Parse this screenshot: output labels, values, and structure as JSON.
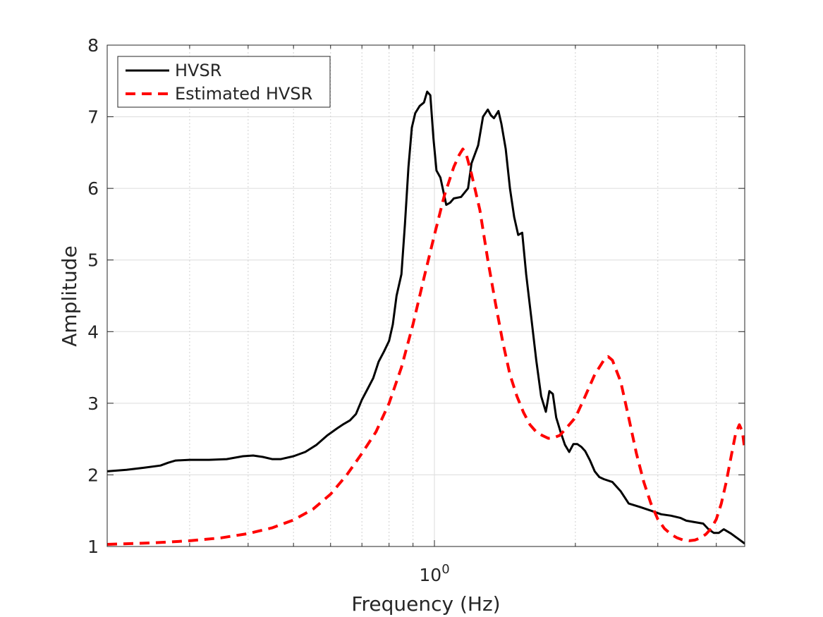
{
  "chart_data": {
    "type": "line",
    "title": "",
    "xlabel": "Frequency (Hz)",
    "ylabel": "Amplitude",
    "xscale": "log",
    "xlim": [
      0.2,
      4.6
    ],
    "ylim": [
      1,
      8
    ],
    "yticks": [
      1,
      2,
      3,
      4,
      5,
      6,
      7,
      8
    ],
    "xticks": [
      {
        "value": 1,
        "base": "10",
        "exponent": "0"
      }
    ],
    "grid": true,
    "legend_position": "top-left",
    "series": [
      {
        "name": "HVSR",
        "color": "#000000",
        "style": "solid",
        "points": [
          [
            0.2,
            2.05
          ],
          [
            0.22,
            2.07
          ],
          [
            0.24,
            2.1
          ],
          [
            0.26,
            2.13
          ],
          [
            0.27,
            2.17
          ],
          [
            0.28,
            2.2
          ],
          [
            0.3,
            2.21
          ],
          [
            0.33,
            2.21
          ],
          [
            0.36,
            2.22
          ],
          [
            0.39,
            2.26
          ],
          [
            0.41,
            2.27
          ],
          [
            0.43,
            2.25
          ],
          [
            0.45,
            2.22
          ],
          [
            0.47,
            2.22
          ],
          [
            0.5,
            2.26
          ],
          [
            0.53,
            2.32
          ],
          [
            0.56,
            2.42
          ],
          [
            0.59,
            2.55
          ],
          [
            0.62,
            2.65
          ],
          [
            0.64,
            2.71
          ],
          [
            0.66,
            2.76
          ],
          [
            0.68,
            2.85
          ],
          [
            0.7,
            3.05
          ],
          [
            0.72,
            3.2
          ],
          [
            0.74,
            3.35
          ],
          [
            0.76,
            3.58
          ],
          [
            0.78,
            3.72
          ],
          [
            0.8,
            3.87
          ],
          [
            0.815,
            4.1
          ],
          [
            0.83,
            4.5
          ],
          [
            0.85,
            4.8
          ],
          [
            0.865,
            5.5
          ],
          [
            0.88,
            6.3
          ],
          [
            0.895,
            6.85
          ],
          [
            0.91,
            7.05
          ],
          [
            0.93,
            7.15
          ],
          [
            0.95,
            7.2
          ],
          [
            0.965,
            7.35
          ],
          [
            0.98,
            7.3
          ],
          [
            0.995,
            6.7
          ],
          [
            1.01,
            6.25
          ],
          [
            1.03,
            6.15
          ],
          [
            1.06,
            5.77
          ],
          [
            1.08,
            5.8
          ],
          [
            1.1,
            5.86
          ],
          [
            1.14,
            5.88
          ],
          [
            1.18,
            6.0
          ],
          [
            1.2,
            6.35
          ],
          [
            1.24,
            6.6
          ],
          [
            1.27,
            7.0
          ],
          [
            1.3,
            7.1
          ],
          [
            1.32,
            7.02
          ],
          [
            1.34,
            6.98
          ],
          [
            1.37,
            7.08
          ],
          [
            1.39,
            6.9
          ],
          [
            1.42,
            6.55
          ],
          [
            1.45,
            6.0
          ],
          [
            1.48,
            5.6
          ],
          [
            1.51,
            5.35
          ],
          [
            1.54,
            5.38
          ],
          [
            1.57,
            4.8
          ],
          [
            1.61,
            4.2
          ],
          [
            1.65,
            3.6
          ],
          [
            1.69,
            3.1
          ],
          [
            1.73,
            2.88
          ],
          [
            1.76,
            3.17
          ],
          [
            1.79,
            3.13
          ],
          [
            1.82,
            2.8
          ],
          [
            1.86,
            2.6
          ],
          [
            1.9,
            2.42
          ],
          [
            1.94,
            2.32
          ],
          [
            1.98,
            2.43
          ],
          [
            2.02,
            2.43
          ],
          [
            2.06,
            2.39
          ],
          [
            2.1,
            2.33
          ],
          [
            2.15,
            2.2
          ],
          [
            2.2,
            2.05
          ],
          [
            2.25,
            1.97
          ],
          [
            2.3,
            1.94
          ],
          [
            2.4,
            1.9
          ],
          [
            2.5,
            1.77
          ],
          [
            2.6,
            1.6
          ],
          [
            2.75,
            1.55
          ],
          [
            2.9,
            1.5
          ],
          [
            3.05,
            1.45
          ],
          [
            3.2,
            1.43
          ],
          [
            3.35,
            1.4
          ],
          [
            3.45,
            1.36
          ],
          [
            3.6,
            1.34
          ],
          [
            3.75,
            1.32
          ],
          [
            3.85,
            1.24
          ],
          [
            3.95,
            1.19
          ],
          [
            4.05,
            1.19
          ],
          [
            4.15,
            1.24
          ],
          [
            4.3,
            1.18
          ],
          [
            4.45,
            1.11
          ],
          [
            4.6,
            1.04
          ]
        ]
      },
      {
        "name": "Estimated HVSR",
        "color": "#ff0000",
        "style": "dashed",
        "points": [
          [
            0.2,
            1.03
          ],
          [
            0.25,
            1.05
          ],
          [
            0.3,
            1.08
          ],
          [
            0.35,
            1.12
          ],
          [
            0.4,
            1.18
          ],
          [
            0.45,
            1.26
          ],
          [
            0.5,
            1.37
          ],
          [
            0.55,
            1.52
          ],
          [
            0.6,
            1.73
          ],
          [
            0.65,
            2.0
          ],
          [
            0.7,
            2.3
          ],
          [
            0.75,
            2.6
          ],
          [
            0.8,
            3.0
          ],
          [
            0.85,
            3.5
          ],
          [
            0.9,
            4.1
          ],
          [
            0.95,
            4.75
          ],
          [
            1.0,
            5.35
          ],
          [
            1.05,
            5.9
          ],
          [
            1.1,
            6.3
          ],
          [
            1.13,
            6.47
          ],
          [
            1.15,
            6.55
          ],
          [
            1.17,
            6.47
          ],
          [
            1.2,
            6.2
          ],
          [
            1.25,
            5.7
          ],
          [
            1.3,
            5.0
          ],
          [
            1.35,
            4.4
          ],
          [
            1.4,
            3.85
          ],
          [
            1.45,
            3.4
          ],
          [
            1.5,
            3.1
          ],
          [
            1.55,
            2.87
          ],
          [
            1.6,
            2.7
          ],
          [
            1.65,
            2.6
          ],
          [
            1.7,
            2.55
          ],
          [
            1.75,
            2.51
          ],
          [
            1.8,
            2.52
          ],
          [
            1.85,
            2.55
          ],
          [
            1.9,
            2.63
          ],
          [
            2.0,
            2.8
          ],
          [
            2.1,
            3.1
          ],
          [
            2.2,
            3.4
          ],
          [
            2.3,
            3.6
          ],
          [
            2.35,
            3.65
          ],
          [
            2.4,
            3.6
          ],
          [
            2.5,
            3.3
          ],
          [
            2.6,
            2.8
          ],
          [
            2.7,
            2.3
          ],
          [
            2.8,
            1.9
          ],
          [
            2.9,
            1.6
          ],
          [
            3.0,
            1.38
          ],
          [
            3.1,
            1.25
          ],
          [
            3.2,
            1.17
          ],
          [
            3.3,
            1.12
          ],
          [
            3.4,
            1.09
          ],
          [
            3.5,
            1.08
          ],
          [
            3.6,
            1.09
          ],
          [
            3.7,
            1.12
          ],
          [
            3.8,
            1.17
          ],
          [
            3.9,
            1.25
          ],
          [
            4.0,
            1.38
          ],
          [
            4.1,
            1.6
          ],
          [
            4.2,
            1.9
          ],
          [
            4.3,
            2.25
          ],
          [
            4.4,
            2.58
          ],
          [
            4.48,
            2.7
          ],
          [
            4.55,
            2.6
          ],
          [
            4.6,
            2.35
          ]
        ]
      }
    ]
  }
}
